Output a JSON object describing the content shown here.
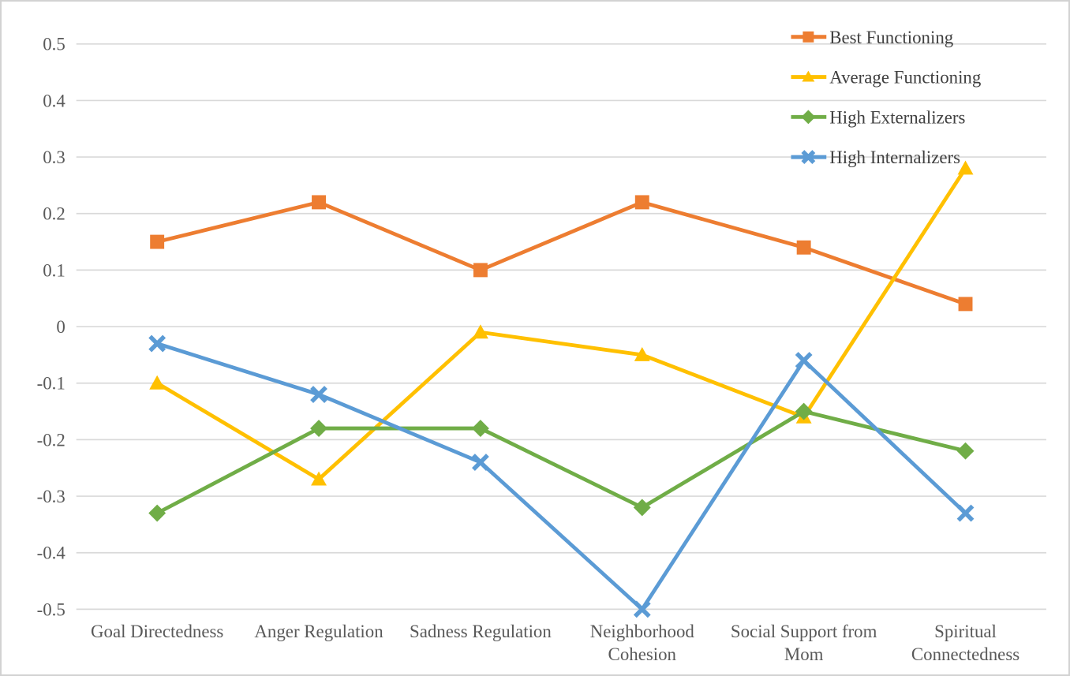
{
  "chart_data": {
    "type": "line",
    "title": "",
    "xlabel": "",
    "ylabel": "",
    "categories": [
      "Goal Directedness",
      "Anger Regulation",
      "Sadness Regulation",
      "Neighborhood Cohesion",
      "Social Support from Mom",
      "Spiritual Connectedness"
    ],
    "category_label_lines": [
      [
        "Goal Directedness"
      ],
      [
        "Anger Regulation"
      ],
      [
        "Sadness Regulation"
      ],
      [
        "Neighborhood",
        "Cohesion"
      ],
      [
        "Social Support from",
        "Mom"
      ],
      [
        "Spiritual",
        "Connectedness"
      ]
    ],
    "series": [
      {
        "name": "Best Functioning",
        "color": "#ED7D31",
        "marker": "square",
        "values": [
          0.15,
          0.22,
          0.1,
          0.22,
          0.14,
          0.04
        ]
      },
      {
        "name": "Average Functioning",
        "color": "#FFC000",
        "marker": "triangle",
        "values": [
          -0.1,
          -0.27,
          -0.01,
          -0.05,
          -0.16,
          0.28
        ]
      },
      {
        "name": "High Externalizers",
        "color": "#70AD47",
        "marker": "diamond",
        "values": [
          -0.33,
          -0.18,
          -0.18,
          -0.32,
          -0.15,
          -0.22
        ]
      },
      {
        "name": "High Internalizers",
        "color": "#5B9BD5",
        "marker": "x",
        "values": [
          -0.03,
          -0.12,
          -0.24,
          -0.5,
          -0.06,
          -0.33
        ]
      }
    ],
    "y_axis": {
      "min": -0.5,
      "max": 0.5,
      "step": 0.1,
      "tick_labels": [
        "0.5",
        "0.4",
        "0.3",
        "0.2",
        "0.1",
        "0",
        "-0.1",
        "-0.2",
        "-0.3",
        "-0.4",
        "-0.5"
      ]
    },
    "grid": true,
    "legend_position": "top-right",
    "colors": {
      "gridline": "#D9D9D9",
      "axis_text": "#595959",
      "legend_text": "#404040",
      "border": "#D2D2D2",
      "background": "#FFFFFF"
    }
  }
}
